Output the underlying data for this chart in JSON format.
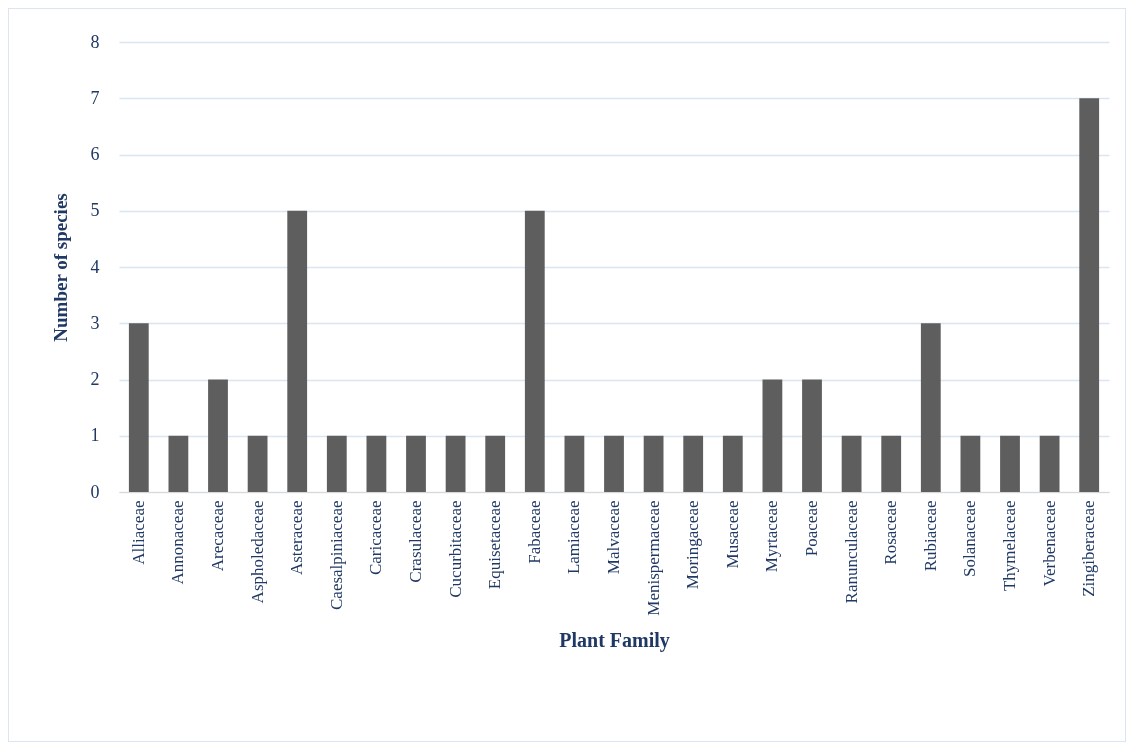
{
  "chart_data": {
    "type": "bar",
    "xlabel": "Plant Family",
    "ylabel": "Number of species",
    "categories": [
      "Alliaceae",
      "Annonaceae",
      "Arecaceae",
      "Aspholedaceae",
      "Asteraceae",
      "Caesalpiniaceae",
      "Caricaceae",
      "Crasulaceae",
      "Cucurbitaceae",
      "Equisetaceae",
      "Fabaceae",
      "Lamiaceae",
      "Malvaceae",
      "Menispermaceae",
      "Moringaceae",
      "Musaceae",
      "Myrtaceae",
      "Poaceae",
      "Ranunculaceae",
      "Rosaceae",
      "Rubiaceae",
      "Solanaceae",
      "Thymelaceae",
      "Verbenaceae",
      "Zingiberaceae"
    ],
    "values": [
      3,
      1,
      2,
      1,
      5,
      1,
      1,
      1,
      1,
      1,
      5,
      1,
      1,
      1,
      1,
      1,
      2,
      2,
      1,
      1,
      3,
      1,
      1,
      1,
      7
    ],
    "color": "#5e5e5e",
    "ylim": [
      0,
      8
    ],
    "yticks": [
      0,
      1,
      2,
      3,
      4,
      5,
      6,
      7,
      8
    ],
    "grid": "y"
  }
}
